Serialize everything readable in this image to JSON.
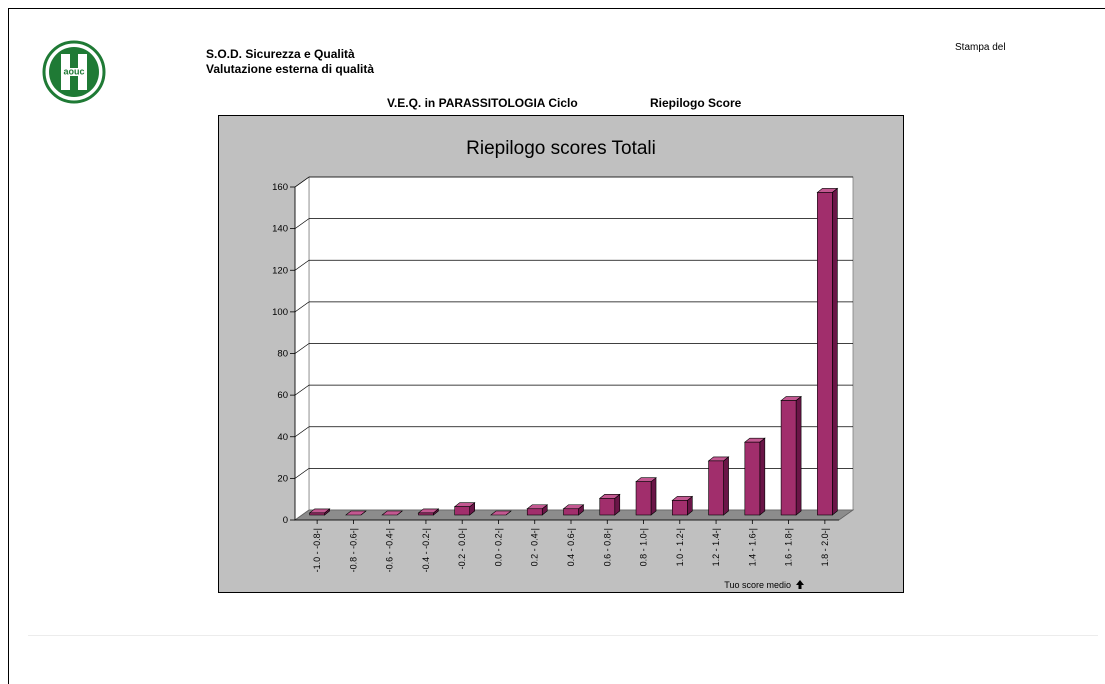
{
  "header": {
    "org_line1": "S.O.D. Sicurezza e Qualità",
    "org_line2": "Valutazione esterna di qualità",
    "print_label": "Stampa del",
    "subtitle_left": "V.E.Q. in PARASSITOLOGIA Ciclo",
    "subtitle_right": "Riepilogo Score",
    "logo_text": "aouc"
  },
  "colors": {
    "bar_front": "#a12e6c",
    "bar_side": "#6a1547",
    "bar_top": "#c35891",
    "chart_bg": "#c0c0c0",
    "plot_bg": "#ffffff",
    "logo_green": "#1f7a35"
  },
  "chart_data": {
    "type": "bar",
    "title": "Riepilogo scores Totali",
    "categories": [
      "-1.0 - -0.8-|",
      "-0.8 - -0.6-|",
      "-0.6 - -0.4-|",
      "-0.4 - -0.2-|",
      "-0.2 - 0.0-|",
      "0.0 - 0.2-|",
      "0.2 - 0.4-|",
      "0.4 - 0.6-|",
      "0.6 - 0.8-|",
      "0.8 - 1.0-|",
      "1.0 - 1.2-|",
      "1.2 - 1.4-|",
      "1.4 - 1.6-|",
      "1.6 - 1.8-|",
      "1.8 - 2.0-|"
    ],
    "values": [
      1,
      0,
      0,
      1,
      4,
      0,
      3,
      3,
      8,
      16,
      7,
      26,
      35,
      55,
      155
    ],
    "ylim": [
      0,
      160
    ],
    "yticks": [
      0,
      20,
      40,
      60,
      80,
      100,
      120,
      140,
      160
    ],
    "grid": true,
    "annotation": "Tuo score medio"
  }
}
